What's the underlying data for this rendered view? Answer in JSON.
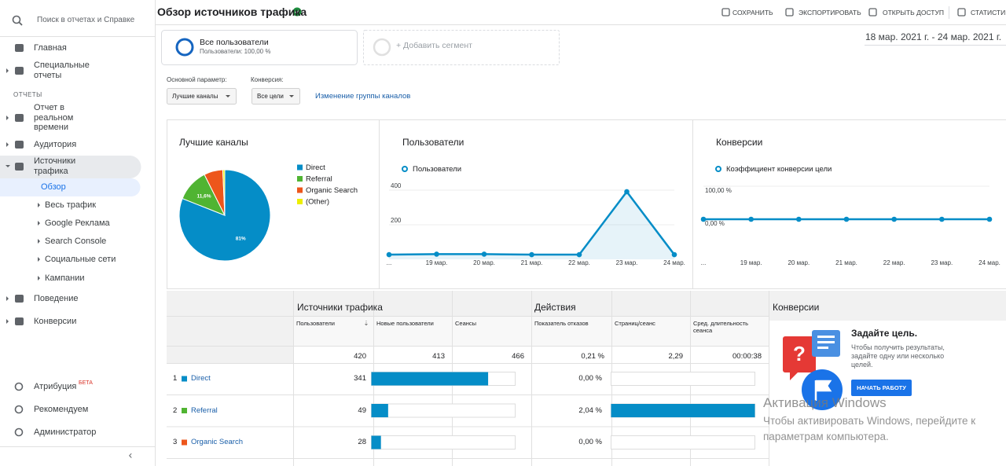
{
  "header": {
    "title": "Обзор источников трафика",
    "actions": [
      "СОХРАНИТЬ",
      "ЭКСПОРТИРОВАТЬ",
      "ОТКРЫТЬ ДОСТУП",
      "СТАТИСТИКА"
    ]
  },
  "sidebar": {
    "search": "Поиск в отчетах и Справке",
    "top": [
      "Главная",
      "Специальные отчеты"
    ],
    "section": "ОТЧЕТЫ",
    "reports": [
      "Отчет в реальном времени",
      "Аудитория",
      "Источники трафика",
      "Поведение",
      "Конверсии"
    ],
    "sub": [
      "Обзор",
      "Весь трафик",
      "Google Реклама",
      "Search Console",
      "Социальные сети",
      "Кампании"
    ],
    "bottom": [
      "Атрибуция",
      "Рекомендуем",
      "Администратор"
    ],
    "badge": "БЕТА"
  },
  "segments": [
    {
      "name": "Все пользователи",
      "detail": "Пользователи: 100,00 %"
    }
  ],
  "add_segment": "+ Добавить сегмент",
  "date_range": "18 мар. 2021 г. - 24 мар. 2021 г.",
  "controls": {
    "primary_label": "Основной параметр:",
    "primary_value": "Лучшие каналы",
    "conversion_label": "Конверсия:",
    "conversion_value": "Все цели",
    "link": "Изменение группы каналов"
  },
  "charts": [
    {
      "type": "pie",
      "title": "Лучшие каналы",
      "categories": [
        "Direct",
        "Referral",
        "Organic Search",
        "(Other)"
      ],
      "values": [
        81,
        11.6,
        6.7,
        0.7
      ],
      "value_labels": [
        "81%",
        "11,6%",
        null,
        null
      ],
      "colors": [
        "#058dc7",
        "#50b432",
        "#ed561b",
        "#edef00"
      ]
    },
    {
      "type": "line",
      "title": "Пользователи",
      "categories": [
        "...",
        "19 мар.",
        "20 мар.",
        "21 мар.",
        "22 мар.",
        "23 мар.",
        "24 мар."
      ],
      "series": [
        {
          "name": "Пользователи",
          "color": "#058dc7",
          "values": [
            27,
            30,
            30,
            27,
            27,
            391,
            27
          ]
        }
      ],
      "ylim": [
        0,
        450
      ],
      "yticks": [
        200,
        400
      ],
      "area": true
    },
    {
      "type": "line",
      "title": "Конверсии",
      "categories": [
        "...",
        "19 мар.",
        "20 мар.",
        "21 мар.",
        "22 мар.",
        "23 мар.",
        "24 мар."
      ],
      "series": [
        {
          "name": "Коэффициент конверсии цели",
          "color": "#058dc7",
          "values": [
            0,
            0,
            0,
            0,
            0,
            0,
            0
          ]
        }
      ],
      "ylim": [
        0,
        100
      ],
      "yticks": [
        {
          "value": 0,
          "label": "0,00 %"
        },
        {
          "value": 100,
          "label": "100,00 %"
        }
      ],
      "area": false
    }
  ],
  "table": {
    "groups": [
      "Источники трафика",
      "Действия",
      "Конверсии"
    ],
    "columns": [
      "Пользователи",
      "Новые пользователи",
      "Сеансы",
      "Показатель отказов",
      "Страниц/сеанс",
      "Сред. длительность сеанса"
    ],
    "totals": [
      420,
      413,
      466,
      {
        "value": 0.21,
        "label": "0,21 %"
      },
      {
        "value": 2.29,
        "label": "2,29"
      },
      "00:00:38"
    ],
    "rows": [
      {
        "rank": 1,
        "channel": "Direct",
        "color": "#058dc7",
        "users": 341,
        "bounce": {
          "value": 0,
          "label": "0,00 %"
        }
      },
      {
        "rank": 2,
        "channel": "Referral",
        "color": "#50b432",
        "users": 49,
        "bounce": {
          "value": 2.04,
          "label": "2,04 %"
        }
      },
      {
        "rank": 3,
        "channel": "Organic Search",
        "color": "#ed561b",
        "users": 28,
        "bounce": {
          "value": 0,
          "label": "0,00 %"
        }
      }
    ]
  },
  "goal": {
    "title": "Задайте цель.",
    "text": "Чтобы получить результаты, задайте одну или несколько целей.",
    "button": "НАЧАТЬ РАБОТУ"
  },
  "watermark": {
    "title": "Активация Windows",
    "text": "Чтобы активировать Windows, перейдите к параметрам компьютера."
  }
}
